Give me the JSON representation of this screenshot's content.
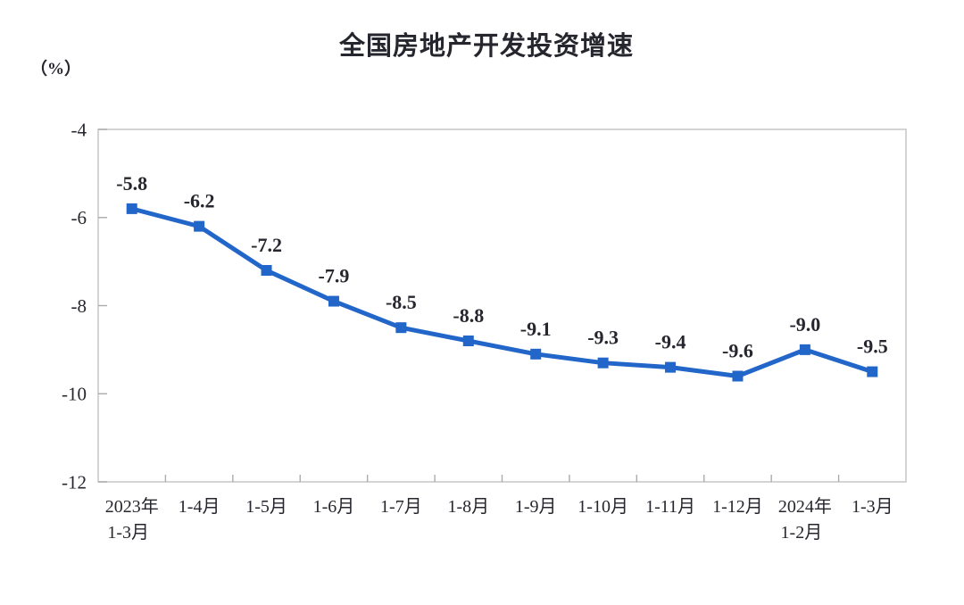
{
  "page": {
    "background_color": "#ffffff"
  },
  "chart_data": {
    "type": "line",
    "title": "全国房地产开发投资增速",
    "unit_label": "（%）",
    "categories": [
      [
        "2023年",
        "1-3月"
      ],
      [
        "1-4月"
      ],
      [
        "1-5月"
      ],
      [
        "1-6月"
      ],
      [
        "1-7月"
      ],
      [
        "1-8月"
      ],
      [
        "1-9月"
      ],
      [
        "1-10月"
      ],
      [
        "1-11月"
      ],
      [
        "1-12月"
      ],
      [
        "2024年",
        "1-2月"
      ],
      [
        "1-3月"
      ]
    ],
    "values": [
      -5.8,
      -6.2,
      -7.2,
      -7.9,
      -8.5,
      -8.8,
      -9.1,
      -9.3,
      -9.4,
      -9.6,
      -9.0,
      -9.5
    ],
    "data_labels": [
      "-5.8",
      "-6.2",
      "-7.2",
      "-7.9",
      "-8.5",
      "-8.8",
      "-9.1",
      "-9.3",
      "-9.4",
      "-9.6",
      "-9.0",
      "-9.5"
    ],
    "y_ticks": [
      -4,
      -6,
      -8,
      -10,
      -12
    ],
    "y_tick_labels": [
      "-4",
      "-6",
      "-8",
      "-10",
      "-12"
    ],
    "ylim": [
      -12,
      -4
    ],
    "xlabel": "",
    "ylabel": "",
    "grid": false,
    "legend": "none",
    "marker_shape": "square",
    "colors": {
      "line": "#2166c8",
      "marker": "#2166c8",
      "plot_border": "#c9c9c9",
      "tick_mark": "#ababab",
      "text": "#26262e"
    }
  }
}
